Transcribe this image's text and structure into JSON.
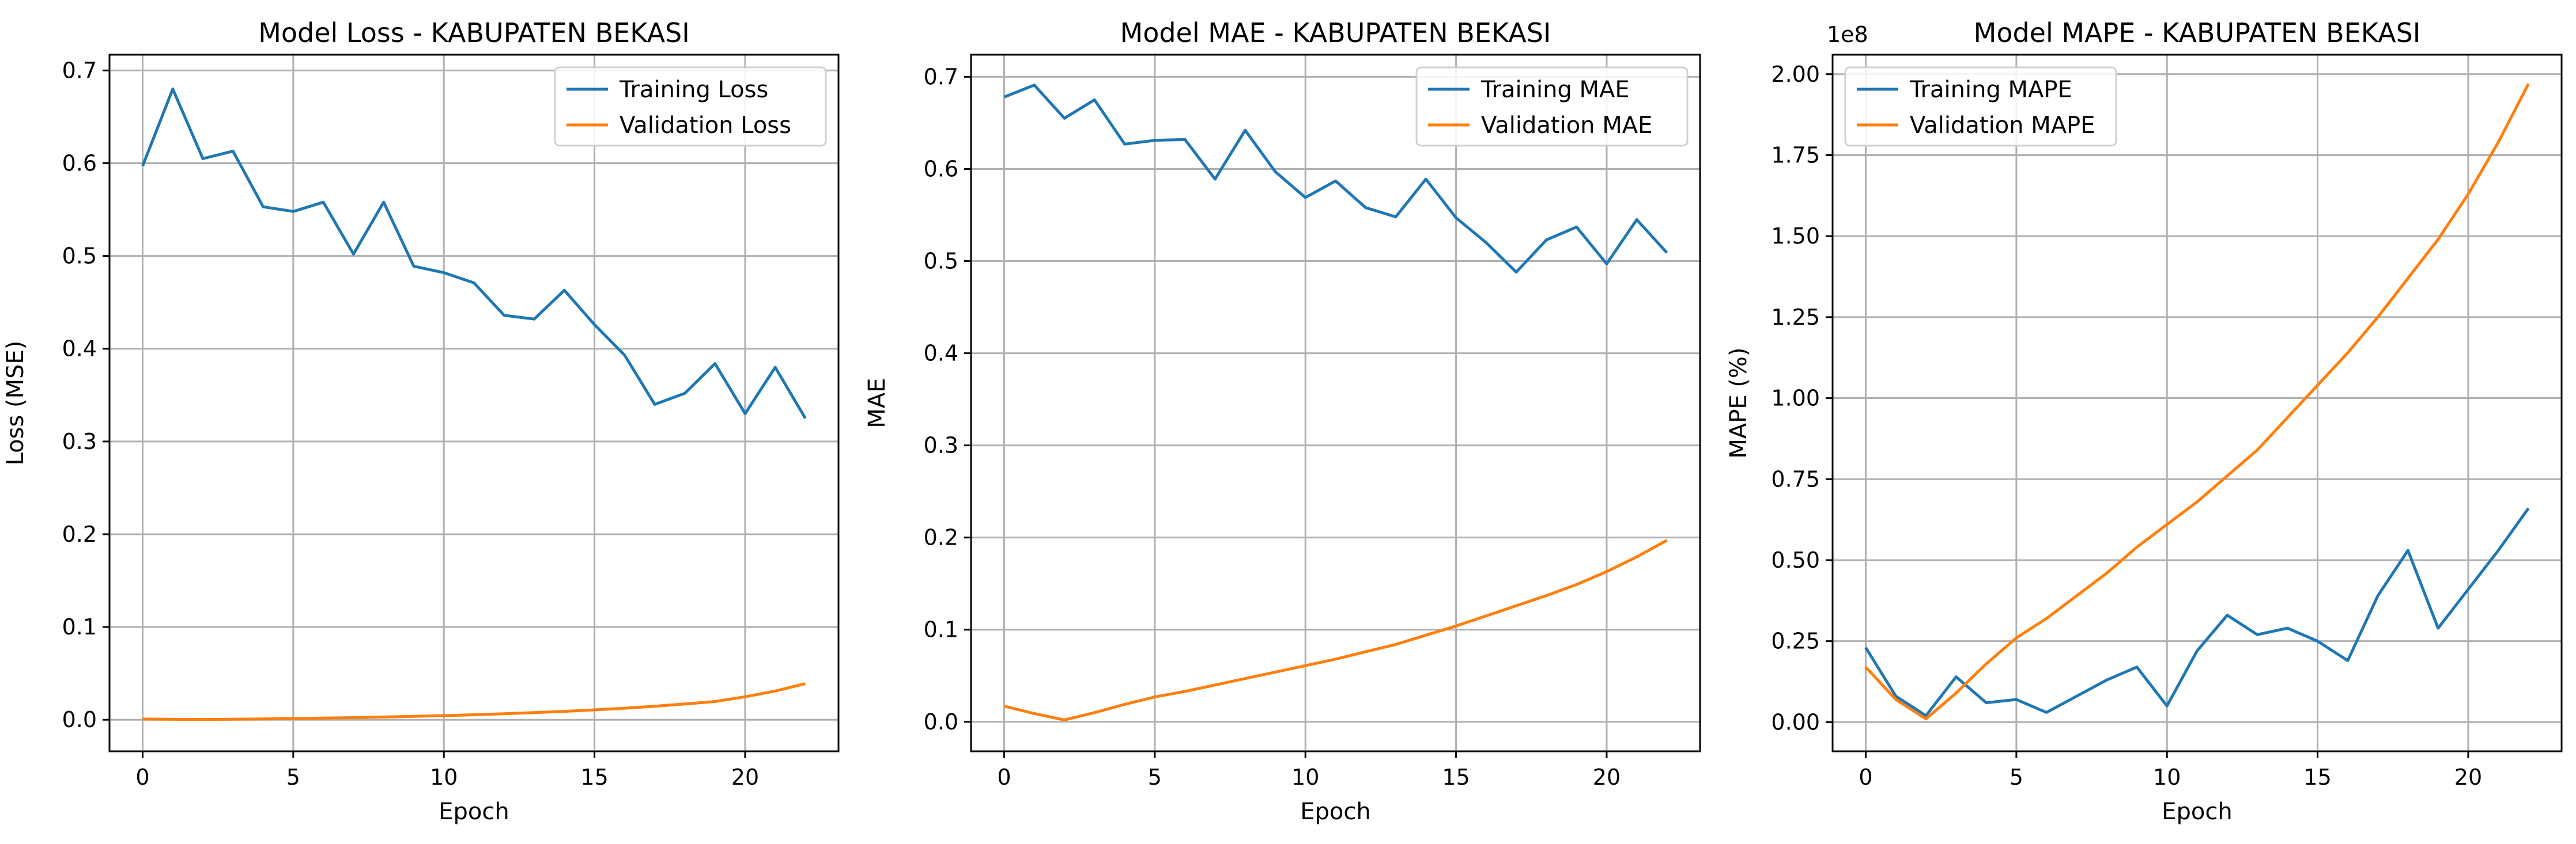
{
  "chart_data": [
    {
      "type": "line",
      "title": "Model Loss - KABUPATEN BEKASI",
      "xlabel": "Epoch",
      "ylabel": "Loss (MSE)",
      "xlim": [
        -1.1,
        23.1
      ],
      "ylim": [
        -0.034,
        0.717
      ],
      "xticks": [
        0,
        5,
        10,
        15,
        20
      ],
      "yticks": [
        0.0,
        0.1,
        0.2,
        0.3,
        0.4,
        0.5,
        0.6,
        0.7
      ],
      "ytick_labels": [
        "0.0",
        "0.1",
        "0.2",
        "0.3",
        "0.4",
        "0.5",
        "0.6",
        "0.7"
      ],
      "offset_text": "",
      "grid": true,
      "legend_position": "top-right",
      "x": [
        0,
        1,
        2,
        3,
        4,
        5,
        6,
        7,
        8,
        9,
        10,
        11,
        12,
        13,
        14,
        15,
        16,
        17,
        18,
        19,
        20,
        21,
        22
      ],
      "series": [
        {
          "name": "Training Loss",
          "color": "#1f77b4",
          "values": [
            0.597,
            0.68,
            0.605,
            0.613,
            0.553,
            0.548,
            0.558,
            0.502,
            0.558,
            0.489,
            0.482,
            0.471,
            0.436,
            0.432,
            0.463,
            0.426,
            0.393,
            0.34,
            0.352,
            0.384,
            0.33,
            0.38,
            0.325
          ]
        },
        {
          "name": "Validation Loss",
          "color": "#ff7f0e",
          "values": [
            0.0008,
            0.0005,
            0.0004,
            0.0006,
            0.0009,
            0.0013,
            0.0018,
            0.0023,
            0.003,
            0.0037,
            0.0045,
            0.0054,
            0.0065,
            0.0077,
            0.0091,
            0.0107,
            0.0125,
            0.0146,
            0.017,
            0.0197,
            0.0248,
            0.031,
            0.039
          ]
        }
      ]
    },
    {
      "type": "line",
      "title": "Model MAE - KABUPATEN BEKASI",
      "xlabel": "Epoch",
      "ylabel": "MAE",
      "xlim": [
        -1.1,
        23.1
      ],
      "ylim": [
        -0.032,
        0.724
      ],
      "xticks": [
        0,
        5,
        10,
        15,
        20
      ],
      "yticks": [
        0.0,
        0.1,
        0.2,
        0.3,
        0.4,
        0.5,
        0.6,
        0.7
      ],
      "ytick_labels": [
        "0.0",
        "0.1",
        "0.2",
        "0.3",
        "0.4",
        "0.5",
        "0.6",
        "0.7"
      ],
      "offset_text": "",
      "grid": true,
      "legend_position": "top-right",
      "x": [
        0,
        1,
        2,
        3,
        4,
        5,
        6,
        7,
        8,
        9,
        10,
        11,
        12,
        13,
        14,
        15,
        16,
        17,
        18,
        19,
        20,
        21,
        22
      ],
      "series": [
        {
          "name": "Training MAE",
          "color": "#1f77b4",
          "values": [
            0.678,
            0.691,
            0.655,
            0.675,
            0.627,
            0.631,
            0.632,
            0.589,
            0.642,
            0.597,
            0.569,
            0.587,
            0.558,
            0.548,
            0.589,
            0.547,
            0.52,
            0.488,
            0.523,
            0.537,
            0.497,
            0.545,
            0.509
          ]
        },
        {
          "name": "Validation MAE",
          "color": "#ff7f0e",
          "values": [
            0.017,
            0.009,
            0.002,
            0.01,
            0.019,
            0.027,
            0.033,
            0.04,
            0.047,
            0.054,
            0.061,
            0.068,
            0.076,
            0.084,
            0.094,
            0.104,
            0.115,
            0.126,
            0.137,
            0.149,
            0.163,
            0.179,
            0.197
          ]
        }
      ]
    },
    {
      "type": "line",
      "title": "Model MAPE - KABUPATEN BEKASI",
      "xlabel": "Epoch",
      "ylabel": "MAPE (%)",
      "xlim": [
        -1.1,
        23.1
      ],
      "ylim": [
        -0.09,
        2.06
      ],
      "xticks": [
        0,
        5,
        10,
        15,
        20
      ],
      "yticks": [
        0.0,
        0.25,
        0.5,
        0.75,
        1.0,
        1.25,
        1.5,
        1.75,
        2.0
      ],
      "ytick_labels": [
        "0.00",
        "0.25",
        "0.50",
        "0.75",
        "1.00",
        "1.25",
        "1.50",
        "1.75",
        "2.00"
      ],
      "offset_text": "1e8",
      "grid": true,
      "legend_position": "top-left",
      "x": [
        0,
        1,
        2,
        3,
        4,
        5,
        6,
        7,
        8,
        9,
        10,
        11,
        12,
        13,
        14,
        15,
        16,
        17,
        18,
        19,
        20,
        21,
        22
      ],
      "series": [
        {
          "name": "Training MAPE",
          "color": "#1f77b4",
          "values": [
            0.23,
            0.08,
            0.02,
            0.14,
            0.06,
            0.07,
            0.03,
            0.08,
            0.13,
            0.17,
            0.05,
            0.22,
            0.33,
            0.27,
            0.29,
            0.25,
            0.19,
            0.39,
            0.53,
            0.29,
            0.41,
            0.53,
            0.66
          ]
        },
        {
          "name": "Validation MAPE",
          "color": "#ff7f0e",
          "values": [
            0.17,
            0.07,
            0.01,
            0.09,
            0.18,
            0.26,
            0.32,
            0.39,
            0.46,
            0.54,
            0.61,
            0.68,
            0.76,
            0.84,
            0.94,
            1.04,
            1.14,
            1.25,
            1.37,
            1.49,
            1.63,
            1.79,
            1.97
          ]
        }
      ]
    }
  ]
}
